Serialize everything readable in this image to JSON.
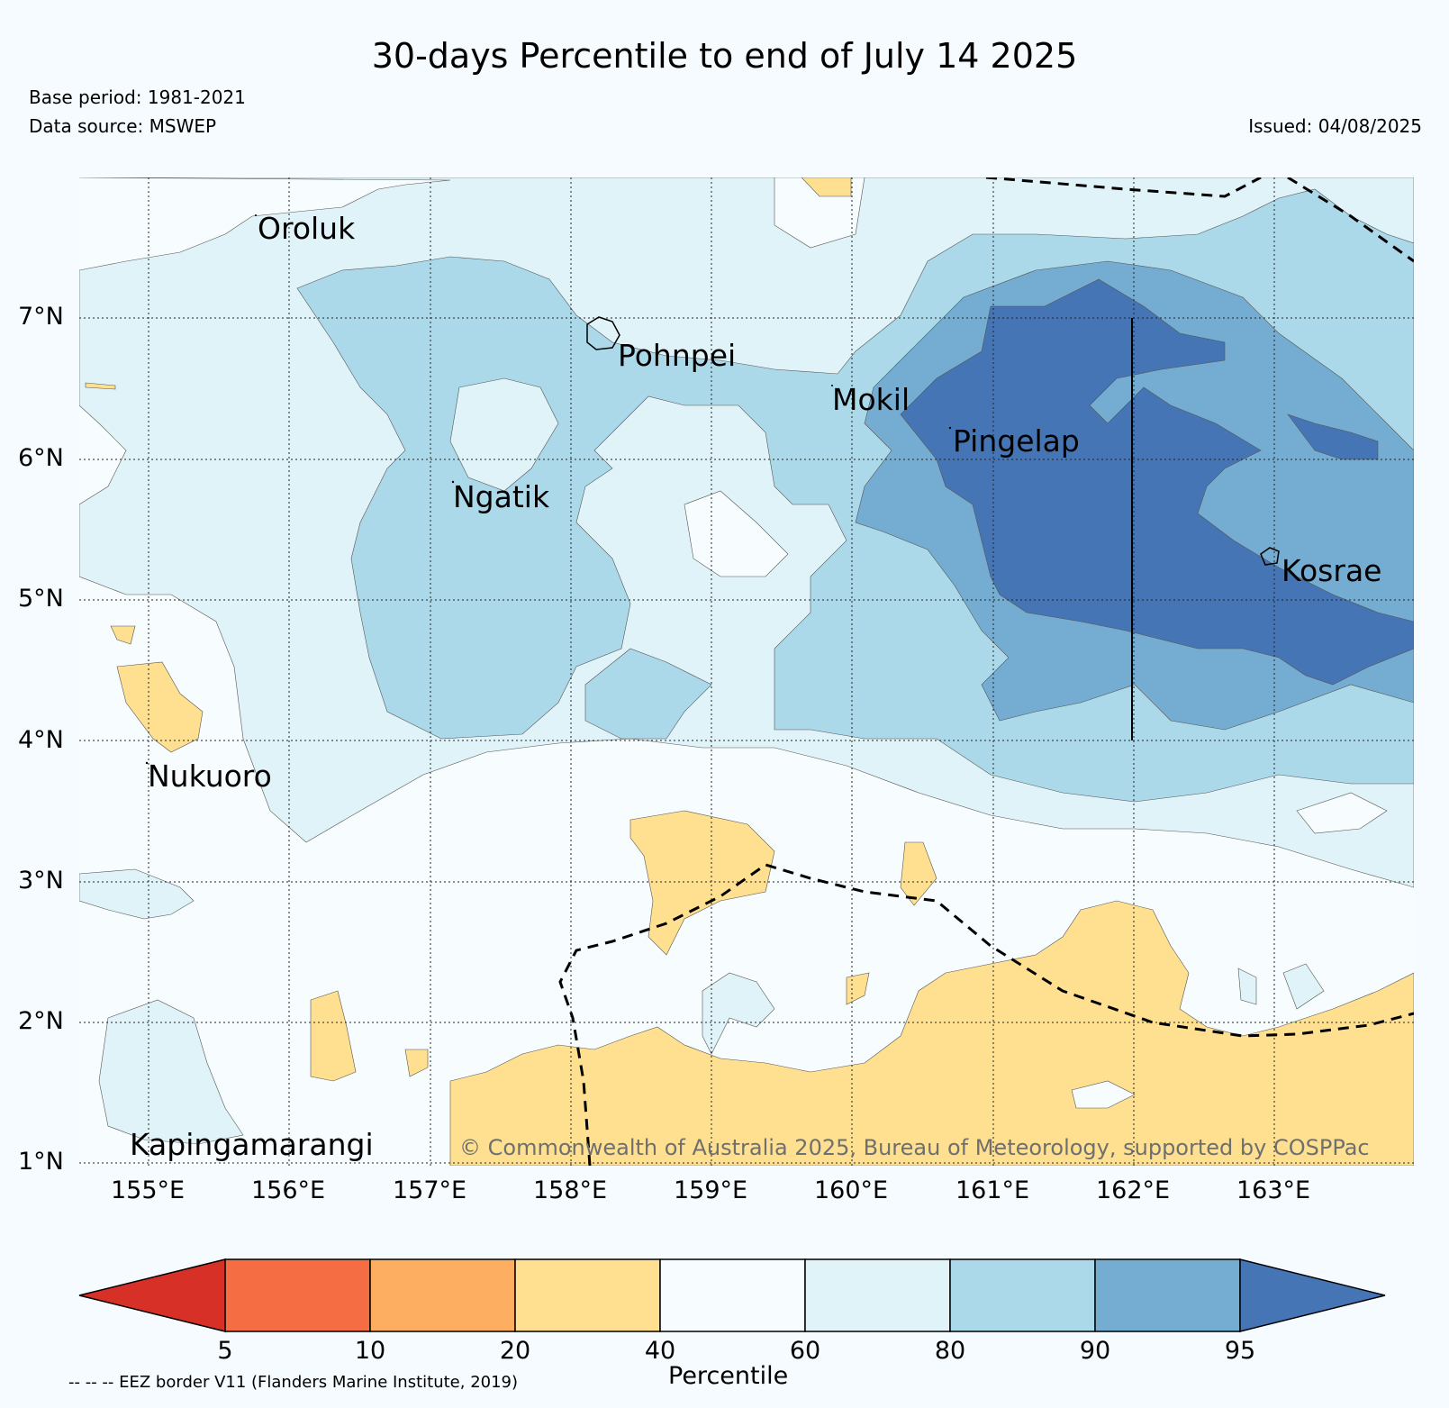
{
  "title": "30-days Percentile to end of July 14 2025",
  "base_period": "Base period: 1981-2021",
  "data_source": "Data source: MSWEP",
  "issued": "Issued: 04/08/2025",
  "copyright": "© Commonwealth of Australia 2025, Bureau of Meteorology, supported by COSPPac",
  "map": {
    "lon_range": [
      154.5,
      164.0
    ],
    "lat_range": [
      1.0,
      8.0
    ],
    "lon_ticks": [
      "155°E",
      "156°E",
      "157°E",
      "158°E",
      "159°E",
      "160°E",
      "161°E",
      "162°E",
      "163°E"
    ],
    "lat_ticks": [
      "7°N",
      "6°N",
      "5°N",
      "4°N",
      "3°N",
      "2°N",
      "1°N"
    ],
    "places": [
      "Oroluk",
      "Pohnpei",
      "Mokil",
      "Pingelap",
      "Ngatik",
      "Kosrae",
      "Nukuoro",
      "Kapingamarangi"
    ]
  },
  "colorbar": {
    "label": "Percentile",
    "ticks": [
      "5",
      "10",
      "20",
      "40",
      "60",
      "80",
      "90",
      "95"
    ],
    "colors": [
      "#d73027",
      "#f46d43",
      "#fdae61",
      "#fee090",
      "#f7fcfe",
      "#e0f3f8",
      "#abd9e9",
      "#74add1",
      "#4575b4"
    ]
  },
  "eez_note": "-- -- -- EEZ border V11 (Flanders Marine Institute, 2019)"
}
